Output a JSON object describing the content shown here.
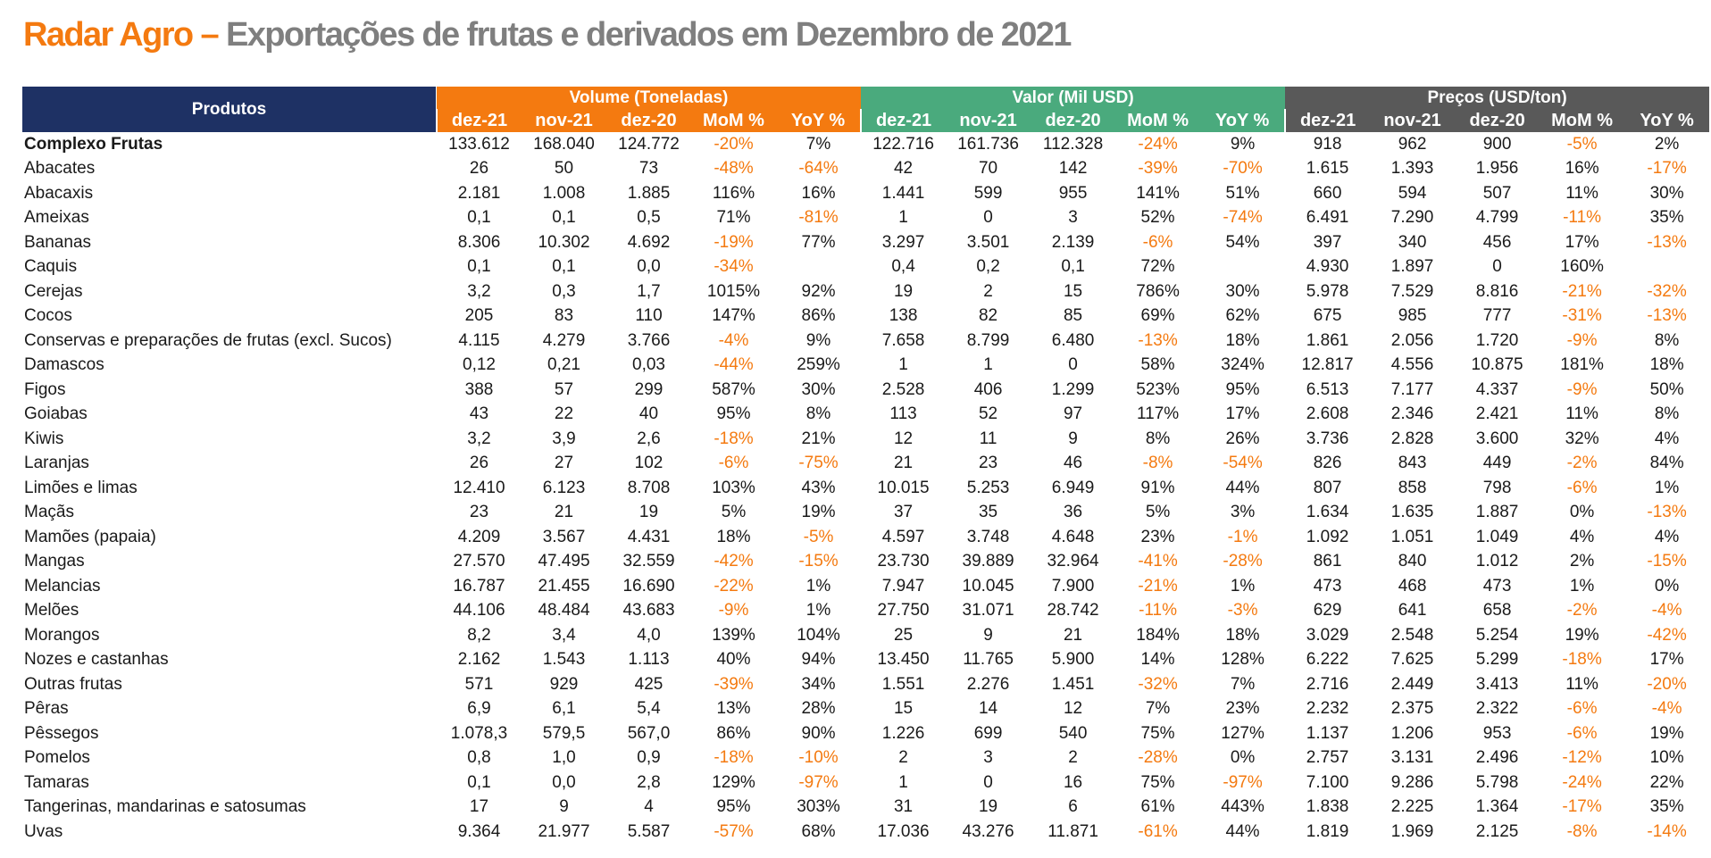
{
  "title": {
    "accent": "Radar Agro –",
    "main": "Exportações de frutas e derivados em Dezembro de 2021"
  },
  "colors": {
    "orange": "#F47A10",
    "green": "#4AAA7D",
    "grey": "#595959",
    "navy": "#1E3164"
  },
  "table": {
    "product_header": "Produtos",
    "groups": [
      "Volume (Toneladas)",
      "Valor (Mil USD)",
      "Preços (USD/ton)"
    ],
    "subheaders": [
      "dez-21",
      "nov-21",
      "dez-20",
      "MoM %",
      "YoY %"
    ],
    "rows": [
      {
        "name": "Complexo Frutas",
        "bold": true,
        "cells": [
          "133.612",
          "168.040",
          "124.772",
          "-20%",
          "7%",
          "122.716",
          "161.736",
          "112.328",
          "-24%",
          "9%",
          "918",
          "962",
          "900",
          "-5%",
          "2%"
        ]
      },
      {
        "name": "Abacates",
        "cells": [
          "26",
          "50",
          "73",
          "-48%",
          "-64%",
          "42",
          "70",
          "142",
          "-39%",
          "-70%",
          "1.615",
          "1.393",
          "1.956",
          "16%",
          "-17%"
        ]
      },
      {
        "name": "Abacaxis",
        "cells": [
          "2.181",
          "1.008",
          "1.885",
          "116%",
          "16%",
          "1.441",
          "599",
          "955",
          "141%",
          "51%",
          "660",
          "594",
          "507",
          "11%",
          "30%"
        ]
      },
      {
        "name": "Ameixas",
        "cells": [
          "0,1",
          "0,1",
          "0,5",
          "71%",
          "-81%",
          "1",
          "0",
          "3",
          "52%",
          "-74%",
          "6.491",
          "7.290",
          "4.799",
          "-11%",
          "35%"
        ]
      },
      {
        "name": "Bananas",
        "cells": [
          "8.306",
          "10.302",
          "4.692",
          "-19%",
          "77%",
          "3.297",
          "3.501",
          "2.139",
          "-6%",
          "54%",
          "397",
          "340",
          "456",
          "17%",
          "-13%"
        ]
      },
      {
        "name": "Caquis",
        "cells": [
          "0,1",
          "0,1",
          "0,0",
          "-34%",
          "",
          "0,4",
          "0,2",
          "0,1",
          "72%",
          "",
          "4.930",
          "1.897",
          "0",
          "160%",
          ""
        ]
      },
      {
        "name": "Cerejas",
        "cells": [
          "3,2",
          "0,3",
          "1,7",
          "1015%",
          "92%",
          "19",
          "2",
          "15",
          "786%",
          "30%",
          "5.978",
          "7.529",
          "8.816",
          "-21%",
          "-32%"
        ]
      },
      {
        "name": "Cocos",
        "cells": [
          "205",
          "83",
          "110",
          "147%",
          "86%",
          "138",
          "82",
          "85",
          "69%",
          "62%",
          "675",
          "985",
          "777",
          "-31%",
          "-13%"
        ]
      },
      {
        "name": "Conservas e preparações de frutas (excl. Sucos)",
        "cells": [
          "4.115",
          "4.279",
          "3.766",
          "-4%",
          "9%",
          "7.658",
          "8.799",
          "6.480",
          "-13%",
          "18%",
          "1.861",
          "2.056",
          "1.720",
          "-9%",
          "8%"
        ]
      },
      {
        "name": "Damascos",
        "cells": [
          "0,12",
          "0,21",
          "0,03",
          "-44%",
          "259%",
          "1",
          "1",
          "0",
          "58%",
          "324%",
          "12.817",
          "4.556",
          "10.875",
          "181%",
          "18%"
        ]
      },
      {
        "name": "Figos",
        "cells": [
          "388",
          "57",
          "299",
          "587%",
          "30%",
          "2.528",
          "406",
          "1.299",
          "523%",
          "95%",
          "6.513",
          "7.177",
          "4.337",
          "-9%",
          "50%"
        ]
      },
      {
        "name": "Goiabas",
        "cells": [
          "43",
          "22",
          "40",
          "95%",
          "8%",
          "113",
          "52",
          "97",
          "117%",
          "17%",
          "2.608",
          "2.346",
          "2.421",
          "11%",
          "8%"
        ]
      },
      {
        "name": "Kiwis",
        "cells": [
          "3,2",
          "3,9",
          "2,6",
          "-18%",
          "21%",
          "12",
          "11",
          "9",
          "8%",
          "26%",
          "3.736",
          "2.828",
          "3.600",
          "32%",
          "4%"
        ]
      },
      {
        "name": "Laranjas",
        "cells": [
          "26",
          "27",
          "102",
          "-6%",
          "-75%",
          "21",
          "23",
          "46",
          "-8%",
          "-54%",
          "826",
          "843",
          "449",
          "-2%",
          "84%"
        ]
      },
      {
        "name": "Limões e limas",
        "cells": [
          "12.410",
          "6.123",
          "8.708",
          "103%",
          "43%",
          "10.015",
          "5.253",
          "6.949",
          "91%",
          "44%",
          "807",
          "858",
          "798",
          "-6%",
          "1%"
        ]
      },
      {
        "name": "Maçãs",
        "cells": [
          "23",
          "21",
          "19",
          "5%",
          "19%",
          "37",
          "35",
          "36",
          "5%",
          "3%",
          "1.634",
          "1.635",
          "1.887",
          "0%",
          "-13%"
        ]
      },
      {
        "name": "Mamões (papaia)",
        "cells": [
          "4.209",
          "3.567",
          "4.431",
          "18%",
          "-5%",
          "4.597",
          "3.748",
          "4.648",
          "23%",
          "-1%",
          "1.092",
          "1.051",
          "1.049",
          "4%",
          "4%"
        ]
      },
      {
        "name": "Mangas",
        "cells": [
          "27.570",
          "47.495",
          "32.559",
          "-42%",
          "-15%",
          "23.730",
          "39.889",
          "32.964",
          "-41%",
          "-28%",
          "861",
          "840",
          "1.012",
          "2%",
          "-15%"
        ]
      },
      {
        "name": "Melancias",
        "cells": [
          "16.787",
          "21.455",
          "16.690",
          "-22%",
          "1%",
          "7.947",
          "10.045",
          "7.900",
          "-21%",
          "1%",
          "473",
          "468",
          "473",
          "1%",
          "0%"
        ]
      },
      {
        "name": "Melões",
        "cells": [
          "44.106",
          "48.484",
          "43.683",
          "-9%",
          "1%",
          "27.750",
          "31.071",
          "28.742",
          "-11%",
          "-3%",
          "629",
          "641",
          "658",
          "-2%",
          "-4%"
        ]
      },
      {
        "name": "Morangos",
        "cells": [
          "8,2",
          "3,4",
          "4,0",
          "139%",
          "104%",
          "25",
          "9",
          "21",
          "184%",
          "18%",
          "3.029",
          "2.548",
          "5.254",
          "19%",
          "-42%"
        ]
      },
      {
        "name": "Nozes e castanhas",
        "cells": [
          "2.162",
          "1.543",
          "1.113",
          "40%",
          "94%",
          "13.450",
          "11.765",
          "5.900",
          "14%",
          "128%",
          "6.222",
          "7.625",
          "5.299",
          "-18%",
          "17%"
        ]
      },
      {
        "name": "Outras frutas",
        "cells": [
          "571",
          "929",
          "425",
          "-39%",
          "34%",
          "1.551",
          "2.276",
          "1.451",
          "-32%",
          "7%",
          "2.716",
          "2.449",
          "3.413",
          "11%",
          "-20%"
        ]
      },
      {
        "name": "Pêras",
        "cells": [
          "6,9",
          "6,1",
          "5,4",
          "13%",
          "28%",
          "15",
          "14",
          "12",
          "7%",
          "23%",
          "2.232",
          "2.375",
          "2.322",
          "-6%",
          "-4%"
        ]
      },
      {
        "name": "Pêssegos",
        "cells": [
          "1.078,3",
          "579,5",
          "567,0",
          "86%",
          "90%",
          "1.226",
          "699",
          "540",
          "75%",
          "127%",
          "1.137",
          "1.206",
          "953",
          "-6%",
          "19%"
        ]
      },
      {
        "name": "Pomelos",
        "cells": [
          "0,8",
          "1,0",
          "0,9",
          "-18%",
          "-10%",
          "2",
          "3",
          "2",
          "-28%",
          "0%",
          "2.757",
          "3.131",
          "2.496",
          "-12%",
          "10%"
        ]
      },
      {
        "name": "Tamaras",
        "cells": [
          "0,1",
          "0,0",
          "2,8",
          "129%",
          "-97%",
          "1",
          "0",
          "16",
          "75%",
          "-97%",
          "7.100",
          "9.286",
          "5.798",
          "-24%",
          "22%"
        ]
      },
      {
        "name": "Tangerinas, mandarinas e satosumas",
        "cells": [
          "17",
          "9",
          "4",
          "95%",
          "303%",
          "31",
          "19",
          "6",
          "61%",
          "443%",
          "1.838",
          "2.225",
          "1.364",
          "-17%",
          "35%"
        ]
      },
      {
        "name": "Uvas",
        "cells": [
          "9.364",
          "21.977",
          "5.587",
          "-57%",
          "68%",
          "17.036",
          "43.276",
          "11.871",
          "-61%",
          "44%",
          "1.819",
          "1.969",
          "2.125",
          "-8%",
          "-14%"
        ]
      }
    ]
  }
}
